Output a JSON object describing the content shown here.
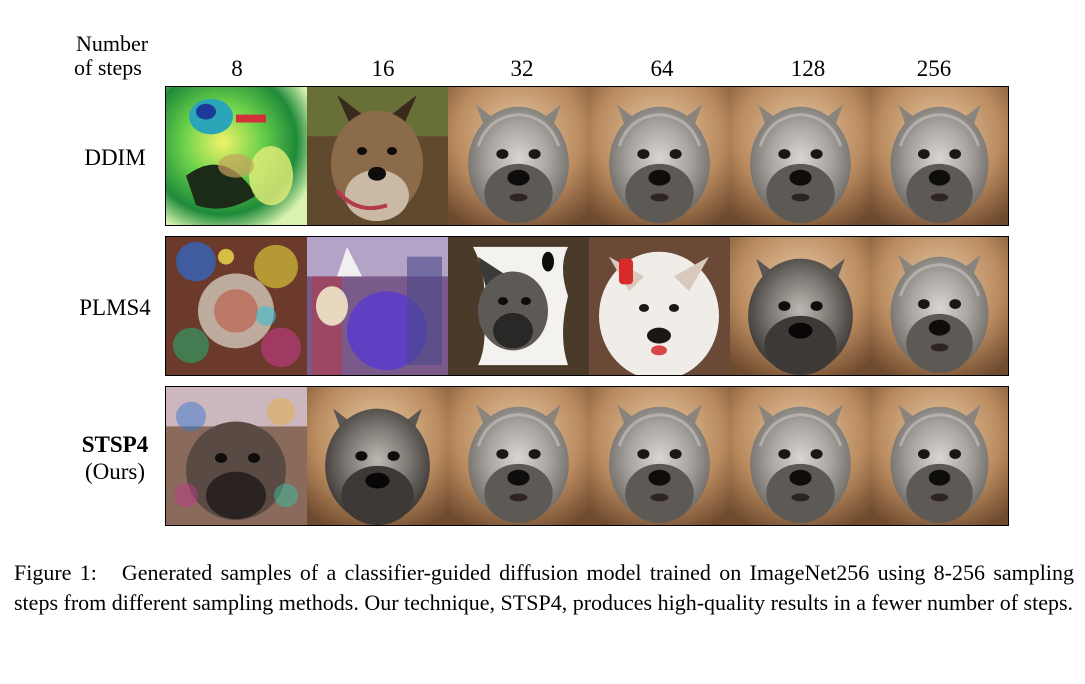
{
  "header": {
    "line1": "Number",
    "line2": "of steps"
  },
  "steps": [
    "8",
    "16",
    "32",
    "64",
    "128",
    "256"
  ],
  "rows": [
    {
      "label": "DDIM",
      "sublabel": ""
    },
    {
      "label": "PLMS4",
      "sublabel": ""
    },
    {
      "label": "STSP4",
      "sublabel": "(Ours)"
    }
  ],
  "tiles": {
    "ddim": [
      "noisy-green-blob",
      "small-terrier-face",
      "terrier-face",
      "terrier-face",
      "terrier-face",
      "terrier-face"
    ],
    "plms4": [
      "colorful-noise",
      "distorted-purple-figure",
      "distorted-dog-on-white",
      "white-dog-red-bow",
      "terrier-face",
      "terrier-face"
    ],
    "stsp4": [
      "noisy-terrier",
      "terrier-face",
      "terrier-face",
      "terrier-face",
      "terrier-face",
      "terrier-face"
    ]
  },
  "caption": {
    "label": "Figure 1:",
    "text": "Generated samples of a classifier-guided diffusion model trained on ImageNet256 using 8-256 sampling steps from different sampling methods. Our technique, STSP4, produces high-quality results in a fewer number of steps."
  }
}
